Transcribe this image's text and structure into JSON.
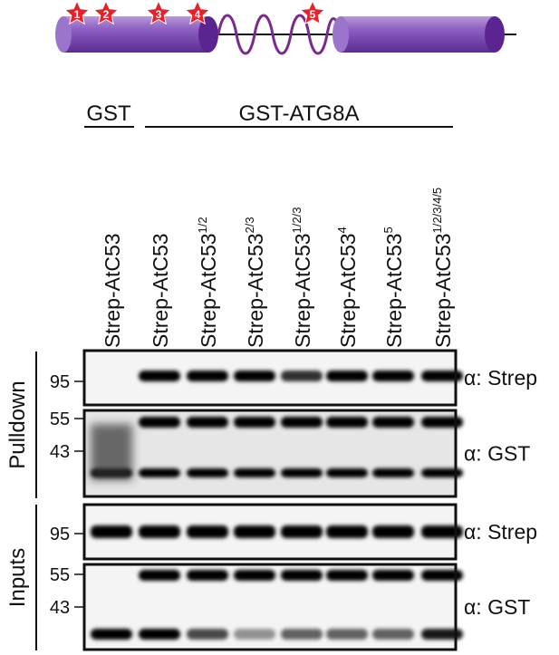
{
  "header": {
    "stars": [
      "1",
      "2",
      "3",
      "4",
      "5"
    ]
  },
  "groups": [
    "GST",
    "GST-ATG8A"
  ],
  "lanes": [
    {
      "label": "Strep-AtC53"
    },
    {
      "label": "Strep-AtC53"
    },
    {
      "label": "Strep-AtC53",
      "sup": "1/2"
    },
    {
      "label": "Strep-AtC53",
      "sup": "2/3"
    },
    {
      "label": "Strep-AtC53",
      "sup": "1/2/3"
    },
    {
      "label": "Strep-AtC53",
      "sup": "4"
    },
    {
      "label": "Strep-AtC53",
      "sup": "5"
    },
    {
      "label": "Strep-AtC53",
      "sup": "1/2/3/4/5"
    }
  ],
  "sections": [
    {
      "title": "Pulldown",
      "blots": [
        {
          "markers": [
            "95"
          ],
          "antibody": "α: Strep"
        },
        {
          "markers": [
            "55",
            "43"
          ],
          "antibody": "α: GST"
        }
      ]
    },
    {
      "title": "Inputs",
      "blots": [
        {
          "markers": [
            "95"
          ],
          "antibody": "α: Strep"
        },
        {
          "markers": [
            "55",
            "43"
          ],
          "antibody": "α: GST"
        }
      ]
    }
  ]
}
